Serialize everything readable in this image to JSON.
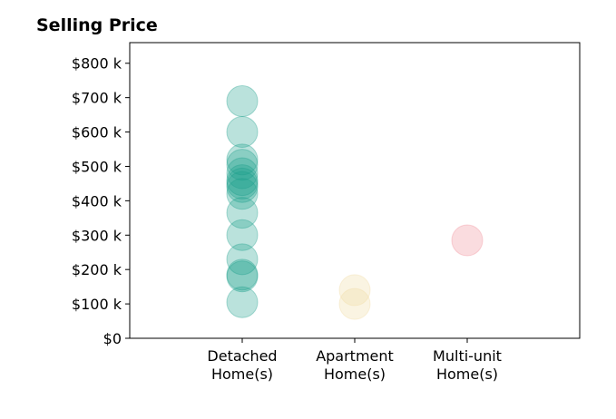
{
  "chart_data": {
    "type": "scatter",
    "title": "Selling Price",
    "xlabel": "",
    "ylabel": "",
    "categories": [
      [
        "Detached",
        "Home(s)"
      ],
      [
        "Apartment",
        "Home(s)"
      ],
      [
        "Multi-unit",
        "Home(s)"
      ]
    ],
    "xlim": [
      -1,
      3
    ],
    "ylim": [
      0,
      860000
    ],
    "yticks": [
      0,
      100000,
      200000,
      300000,
      400000,
      500000,
      600000,
      700000,
      800000
    ],
    "ytick_labels": [
      "$0",
      "$100 k",
      "$200 k",
      "$300 k",
      "$400 k",
      "$500 k",
      "$600 k",
      "$700 k",
      "$800 k"
    ],
    "grid": false,
    "series": [
      {
        "category_index": 0,
        "color": "#1b9e8a",
        "values": [
          690000,
          600000,
          520000,
          505000,
          480000,
          460000,
          450000,
          440000,
          420000,
          365000,
          300000,
          230000,
          185000,
          180000,
          105000
        ]
      },
      {
        "category_index": 1,
        "color": "#f0d9a0",
        "values": [
          140000,
          100000
        ]
      },
      {
        "category_index": 2,
        "color": "#f08a96",
        "values": [
          285000
        ]
      }
    ]
  }
}
